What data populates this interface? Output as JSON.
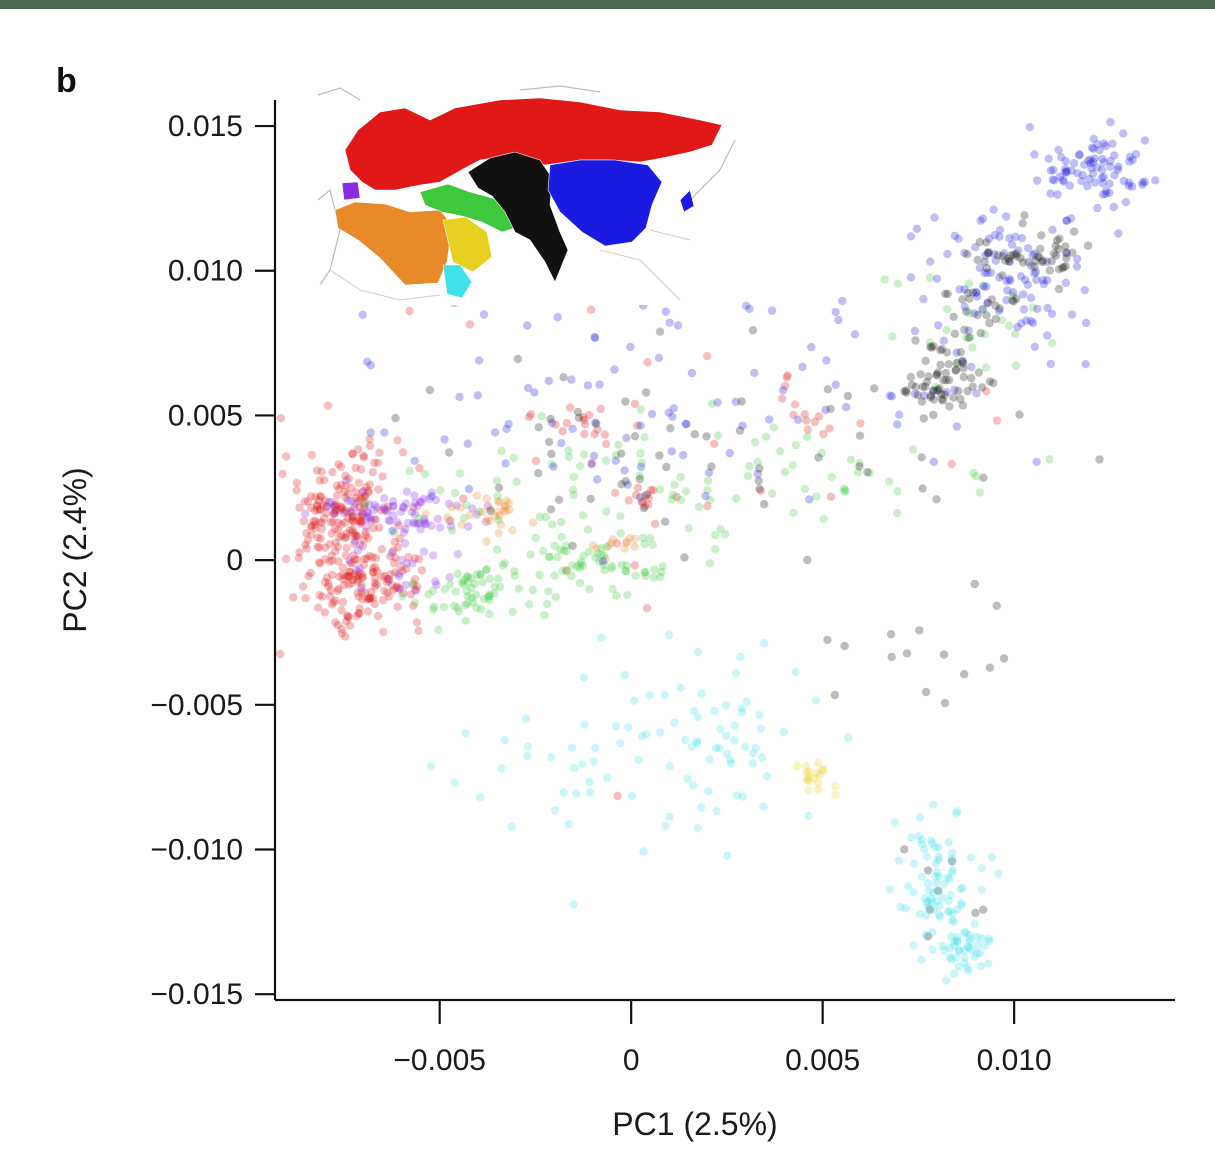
{
  "panel_label": "b",
  "colors": {
    "red": "#e01818",
    "blue": "#1a1ae0",
    "black": "#111111",
    "green": "#3ec83e",
    "purple": "#8a2be2",
    "orange": "#e8892a",
    "yellow": "#e8d020",
    "cyan": "#40e0e8"
  },
  "chart_data": {
    "type": "scatter",
    "title": "",
    "xlabel": "PC1 (2.5%)",
    "ylabel": "PC2 (2.4%)",
    "xlim": [
      -0.0093,
      0.0142
    ],
    "ylim": [
      -0.0152,
      0.0159
    ],
    "x_ticks": [
      -0.005,
      0,
      0.005,
      0.01
    ],
    "x_tick_labels": [
      "−0.005",
      "0",
      "0.005",
      "0.010"
    ],
    "y_ticks": [
      -0.015,
      -0.01,
      -0.005,
      0,
      0.005,
      0.01,
      0.015
    ],
    "y_tick_labels": [
      "−0.015",
      "−0.010",
      "−0.005",
      "0",
      "0.005",
      "0.010",
      "0.015"
    ],
    "grid": false,
    "legend": "inset map (top-left), color-coded regions",
    "series": [
      {
        "color": "red",
        "clusters": [
          {
            "cx": -0.0075,
            "cy": 0.0017,
            "sx": 0.0008,
            "sy": 0.0011,
            "n": 180
          },
          {
            "cx": -0.007,
            "cy": -0.0008,
            "sx": 0.0008,
            "sy": 0.0007,
            "n": 140
          },
          {
            "cx": -0.0011,
            "cy": 0.0047,
            "sx": 0.0004,
            "sy": 0.0003,
            "n": 14
          },
          {
            "cx": 0.0004,
            "cy": 0.0021,
            "sx": 0.0003,
            "sy": 0.0002,
            "n": 10
          },
          {
            "cx": 0.0045,
            "cy": 0.0049,
            "sx": 0.0003,
            "sy": 0.0003,
            "n": 8
          },
          {
            "cx": 0.001,
            "cy": 0.004,
            "sx": 0.006,
            "sy": 0.003,
            "n": 40
          }
        ]
      },
      {
        "color": "purple",
        "clusters": [
          {
            "cx": -0.006,
            "cy": 0.0016,
            "sx": 0.0011,
            "sy": 0.0005,
            "n": 80
          },
          {
            "cx": -0.006,
            "cy": -0.0005,
            "sx": 0.0008,
            "sy": 0.0006,
            "n": 20
          }
        ]
      },
      {
        "color": "orange",
        "clusters": [
          {
            "cx": -0.0039,
            "cy": 0.0016,
            "sx": 0.0006,
            "sy": 0.0004,
            "n": 30
          },
          {
            "cx": -0.0004,
            "cy": 0.0006,
            "sx": 0.0004,
            "sy": 0.0003,
            "n": 12
          }
        ]
      },
      {
        "color": "green",
        "clusters": [
          {
            "cx": -0.004,
            "cy": -0.0011,
            "sx": 0.0008,
            "sy": 0.0005,
            "n": 60
          },
          {
            "cx": -0.0008,
            "cy": -0.0001,
            "sx": 0.0011,
            "sy": 0.0005,
            "n": 60
          },
          {
            "cx": 0.003,
            "cy": 0.003,
            "sx": 0.003,
            "sy": 0.001,
            "n": 60
          },
          {
            "cx": 0.0085,
            "cy": 0.008,
            "sx": 0.001,
            "sy": 0.001,
            "n": 25
          },
          {
            "cx": -0.003,
            "cy": 0.002,
            "sx": 0.002,
            "sy": 0.0015,
            "n": 40
          }
        ]
      },
      {
        "color": "blue",
        "clusters": [
          {
            "cx": 0.01,
            "cy": 0.01,
            "sx": 0.0012,
            "sy": 0.0012,
            "n": 100
          },
          {
            "cx": 0.012,
            "cy": 0.0135,
            "sx": 0.0008,
            "sy": 0.0006,
            "n": 80
          },
          {
            "cx": 0.001,
            "cy": 0.0055,
            "sx": 0.0045,
            "sy": 0.002,
            "n": 110
          }
        ]
      },
      {
        "color": "black",
        "clusters": [
          {
            "cx": 0.0081,
            "cy": 0.0062,
            "sx": 0.0005,
            "sy": 0.0006,
            "n": 60
          },
          {
            "cx": 0.0105,
            "cy": 0.0105,
            "sx": 0.0007,
            "sy": 0.0005,
            "n": 50
          },
          {
            "cx": 0.009,
            "cy": 0.0085,
            "sx": 0.0005,
            "sy": 0.0008,
            "n": 25
          },
          {
            "cx": 0.002,
            "cy": 0.004,
            "sx": 0.0035,
            "sy": 0.0018,
            "n": 60
          },
          {
            "cx": 0.0075,
            "cy": -0.003,
            "sx": 0.0015,
            "sy": 0.0015,
            "n": 15
          },
          {
            "cx": 0.008,
            "cy": -0.011,
            "sx": 0.0006,
            "sy": 0.001,
            "n": 8
          }
        ]
      },
      {
        "color": "cyan",
        "clusters": [
          {
            "cx": 0.008,
            "cy": -0.011,
            "sx": 0.0006,
            "sy": 0.0012,
            "n": 80
          },
          {
            "cx": 0.0086,
            "cy": -0.0135,
            "sx": 0.0004,
            "sy": 0.0005,
            "n": 40
          },
          {
            "cx": 0.0028,
            "cy": -0.0066,
            "sx": 0.0005,
            "sy": 0.0004,
            "n": 15
          },
          {
            "cx": 0.001,
            "cy": -0.0065,
            "sx": 0.003,
            "sy": 0.0018,
            "n": 80
          }
        ]
      },
      {
        "color": "yellow",
        "clusters": [
          {
            "cx": 0.0049,
            "cy": -0.0075,
            "sx": 0.0003,
            "sy": 0.0003,
            "n": 18
          }
        ]
      }
    ]
  },
  "inset_map": {
    "regions": [
      {
        "name": "Europe and Central Asia",
        "color": "red"
      },
      {
        "name": "South Asia",
        "color": "black"
      },
      {
        "name": "East Asia",
        "color": "blue"
      },
      {
        "name": "Caucasus and Iran",
        "color": "green"
      },
      {
        "name": "Levant",
        "color": "purple"
      },
      {
        "name": "North Africa",
        "color": "orange"
      },
      {
        "name": "Arabian Peninsula",
        "color": "yellow"
      },
      {
        "name": "Horn of Africa",
        "color": "cyan"
      }
    ]
  }
}
